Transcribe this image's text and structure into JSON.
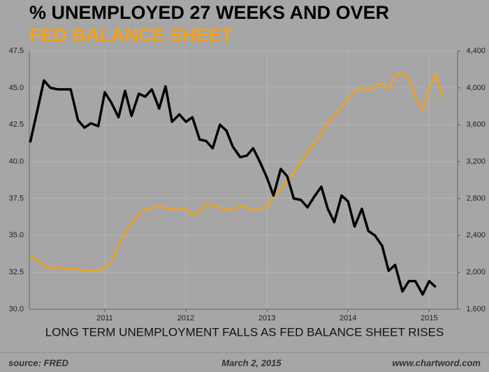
{
  "chart_data": {
    "type": "line",
    "caption": "LONG TERM UNEMPLOYMENT FALLS AS FED BALANCE SHEET RISES",
    "source": "source: FRED",
    "date": "March 2, 2015",
    "website": "www.chartword.com",
    "x": [
      2010.08,
      2010.17,
      2010.25,
      2010.33,
      2010.42,
      2010.5,
      2010.58,
      2010.67,
      2010.75,
      2010.83,
      2010.92,
      2011.0,
      2011.08,
      2011.17,
      2011.25,
      2011.33,
      2011.42,
      2011.5,
      2011.58,
      2011.67,
      2011.75,
      2011.83,
      2011.92,
      2012.0,
      2012.08,
      2012.17,
      2012.25,
      2012.33,
      2012.42,
      2012.5,
      2012.58,
      2012.67,
      2012.75,
      2012.83,
      2012.92,
      2013.0,
      2013.08,
      2013.17,
      2013.25,
      2013.33,
      2013.42,
      2013.5,
      2013.58,
      2013.67,
      2013.75,
      2013.83,
      2013.92,
      2014.0,
      2014.08,
      2014.17,
      2014.25,
      2014.33,
      2014.42,
      2014.5,
      2014.58,
      2014.67,
      2014.75,
      2014.83,
      2014.92,
      2015.0,
      2015.08,
      2015.17
    ],
    "series": [
      {
        "name": "% UNEMPLOYED 27 WEEKS AND OVER",
        "color": "#000000",
        "axis": "y",
        "values": [
          41.3,
          43.5,
          45.5,
          45.0,
          44.9,
          44.9,
          44.9,
          42.8,
          42.3,
          42.6,
          42.4,
          44.7,
          44.0,
          43.0,
          44.8,
          43.1,
          44.6,
          44.4,
          44.9,
          43.6,
          45.1,
          42.7,
          43.2,
          42.7,
          43.0,
          41.5,
          41.4,
          40.9,
          42.5,
          42.1,
          41.0,
          40.3,
          40.4,
          40.9,
          39.9,
          38.9,
          37.7,
          39.5,
          39.0,
          37.5,
          37.4,
          36.9,
          37.6,
          38.3,
          36.8,
          35.9,
          37.7,
          37.3,
          35.6,
          36.8,
          35.3,
          35.0,
          34.3,
          32.6,
          33.0,
          31.2,
          31.9,
          31.9,
          31.0,
          31.9,
          31.5,
          null
        ]
      },
      {
        "name": "FED BALANCE SHEET",
        "color": "#f5a01a",
        "axis": "y2",
        "values": [
          2180,
          2130,
          2080,
          2040,
          2060,
          2040,
          2040,
          2030,
          2020,
          2010,
          2020,
          2040,
          2120,
          2290,
          2430,
          2530,
          2640,
          2680,
          2700,
          2710,
          2700,
          2690,
          2680,
          2700,
          2620,
          2660,
          2750,
          2720,
          2700,
          2690,
          2670,
          2720,
          2700,
          2680,
          2680,
          2720,
          2820,
          2900,
          3000,
          3080,
          3200,
          3300,
          3400,
          3500,
          3620,
          3700,
          3790,
          3890,
          3960,
          4000,
          3970,
          4020,
          4050,
          3990,
          4140,
          4160,
          4100,
          3900,
          3760,
          4000,
          4150,
          3900
        ]
      }
    ],
    "xlim": [
      2010.07,
      2015.35
    ],
    "xticks": [
      2011,
      2012,
      2013,
      2014,
      2015
    ],
    "ylim": [
      30,
      47.5
    ],
    "yticks": [
      {
        "value": 30,
        "label": "30.0"
      },
      32.5,
      {
        "value": 35,
        "label": "35.0"
      },
      37.5,
      {
        "value": 40,
        "label": "40.0"
      },
      42.5,
      {
        "value": 45,
        "label": "45.0"
      },
      47.5
    ],
    "y2lim": [
      1600,
      4400
    ],
    "y2ticks": [
      {
        "value": 1600,
        "label": "1,600"
      },
      {
        "value": 2000,
        "label": "2,000"
      },
      {
        "value": 2400,
        "label": "2,400"
      },
      {
        "value": 2800,
        "label": "2,800"
      },
      {
        "value": 3200,
        "label": "3,200"
      },
      {
        "value": 3600,
        "label": "3,600"
      },
      {
        "value": 4000,
        "label": "4,000"
      },
      {
        "value": 4400,
        "label": "4,400"
      }
    ],
    "grid": true
  }
}
